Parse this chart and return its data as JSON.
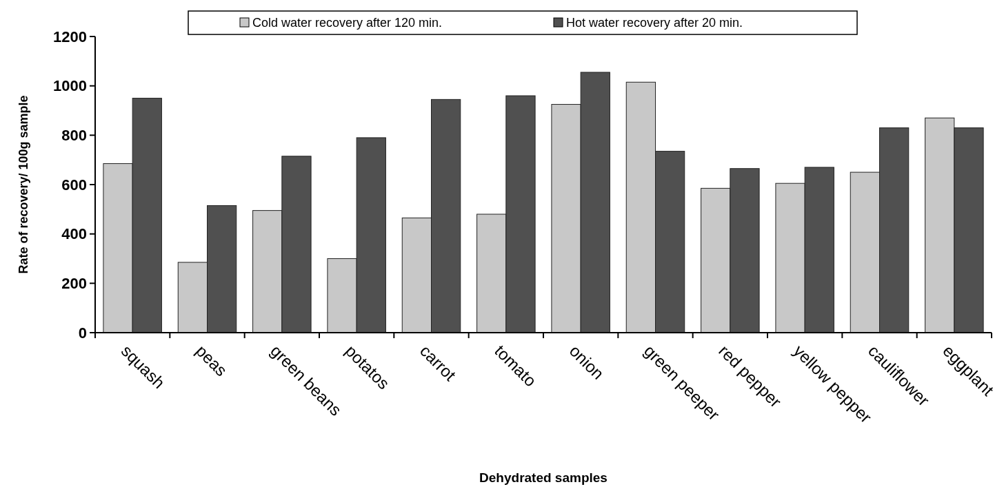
{
  "chart_data": {
    "type": "bar",
    "xlabel": "Dehydrated samples",
    "ylabel": "Rate of recovery/ 100g sample",
    "categories": [
      "squash",
      "peas",
      "green beans",
      "potatos",
      "carrot",
      "tomato",
      "onion",
      "green peeper",
      "red pepper",
      "yellow pepper",
      "cauliflower",
      "eggplant"
    ],
    "series": [
      {
        "name": "Cold water recovery after 120 min.",
        "color": "#c8c8c8",
        "values": [
          685,
          285,
          495,
          300,
          465,
          480,
          925,
          1015,
          585,
          605,
          650,
          870
        ]
      },
      {
        "name": "Hot water recovery after 20 min.",
        "color": "#505050",
        "values": [
          950,
          515,
          715,
          790,
          945,
          960,
          1055,
          735,
          665,
          670,
          830,
          830
        ]
      }
    ],
    "ylim": [
      0,
      1200
    ],
    "yticks": [
      0,
      200,
      400,
      600,
      800,
      1000,
      1200
    ],
    "grid": false,
    "legend": "top"
  }
}
